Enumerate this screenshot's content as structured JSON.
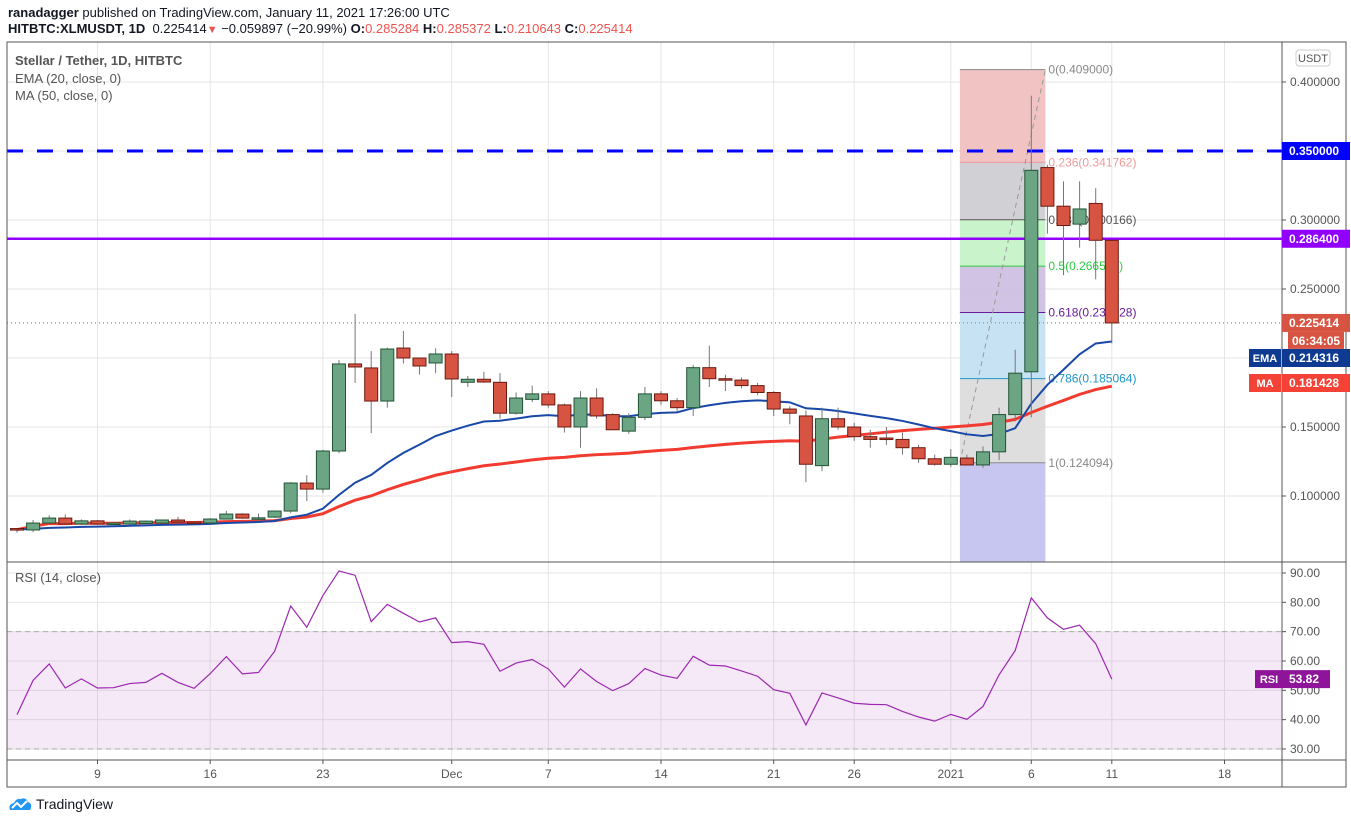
{
  "header": {
    "publisher_line": "ranadagger published on TradingView.com, January 11, 2021 17:26:00 UTC",
    "publisher_name": "ranadagger",
    "publisher_rest": " published on TradingView.com, January 11, 2021 17:26:00 UTC",
    "symbol": "HITBTC:XLMUSDT, 1D",
    "last": "0.225414",
    "change": "−0.059897 (−20.99%)",
    "o_label": "O:",
    "o": "0.285284",
    "h_label": "H:",
    "h": "0.285372",
    "l_label": "L:",
    "l": "0.210643",
    "c_label": "C:",
    "c": "0.225414"
  },
  "legend": {
    "title": "Stellar / Tether, 1D, HITBTC",
    "ema": "EMA (20, close, 0)",
    "ma": "MA (50, close, 0)",
    "rsi": "RSI (14, close)"
  },
  "price_axis": {
    "currency": "USDT",
    "ticks": [
      "0.400000",
      "0.300000",
      "0.250000",
      "0.150000",
      "0.100000"
    ],
    "tick_values": [
      0.4,
      0.3,
      0.25,
      0.15,
      0.1
    ],
    "grid_values": [
      0.4,
      0.35,
      0.3,
      0.25,
      0.2,
      0.15,
      0.1
    ],
    "last_price_label": "0.225414",
    "countdown": "06:34:05",
    "ema_tag": "EMA",
    "ema_value": "0.214316",
    "ma_tag": "MA",
    "ma_value": "0.181428",
    "resistance_1": "0.350000",
    "resistance_2": "0.286400"
  },
  "rsi_axis": {
    "ticks": [
      "90.00",
      "80.00",
      "70.00",
      "60.00",
      "50.00",
      "40.00",
      "30.00"
    ],
    "tick_values": [
      90,
      80,
      70,
      60,
      50,
      40,
      30
    ],
    "tag": "RSI",
    "value": "53.82"
  },
  "time_axis": {
    "labels": [
      "9",
      "16",
      "23",
      "Dec",
      "7",
      "14",
      "21",
      "26",
      "2021",
      "6",
      "11",
      "18"
    ],
    "label_dates": [
      "2020-11-09",
      "2020-11-16",
      "2020-11-23",
      "2020-12-01",
      "2020-12-07",
      "2020-12-14",
      "2020-12-21",
      "2020-12-26",
      "2021-01-01",
      "2021-01-06",
      "2021-01-11",
      "2021-01-18"
    ]
  },
  "colors": {
    "up": "#6ba583",
    "up_border": "#225437",
    "down": "#d75442",
    "down_border": "#6b1a10",
    "ema": "#1848a8",
    "ma": "#f23b30",
    "rsi": "#9c27b0",
    "resistance_1": "#0000ff",
    "resistance_2": "#9100ff"
  },
  "chart_data": [
    {
      "type": "candlestick",
      "title": "Stellar / Tether, 1D, HITBTC",
      "start_date": "2020-11-04",
      "ylim": [
        0.05,
        0.42
      ],
      "grid": true,
      "ohlc": [
        [
          0.0764,
          0.0768,
          0.0735,
          0.0757
        ],
        [
          0.0754,
          0.0826,
          0.0738,
          0.0804
        ],
        [
          0.0804,
          0.086,
          0.08,
          0.084
        ],
        [
          0.084,
          0.0866,
          0.0795,
          0.0797
        ],
        [
          0.0797,
          0.083,
          0.079,
          0.082
        ],
        [
          0.082,
          0.0826,
          0.079,
          0.0797
        ],
        [
          0.0797,
          0.0815,
          0.079,
          0.0804
        ],
        [
          0.0797,
          0.083,
          0.0792,
          0.0818
        ],
        [
          0.0801,
          0.0822,
          0.0795,
          0.0818
        ],
        [
          0.0804,
          0.083,
          0.08,
          0.0826
        ],
        [
          0.0826,
          0.085,
          0.0805,
          0.0811
        ],
        [
          0.0811,
          0.0815,
          0.0795,
          0.0804
        ],
        [
          0.0804,
          0.084,
          0.08,
          0.0833
        ],
        [
          0.0833,
          0.0893,
          0.083,
          0.0869
        ],
        [
          0.0869,
          0.0875,
          0.0835,
          0.084
        ],
        [
          0.084,
          0.0872,
          0.0818,
          0.0842
        ],
        [
          0.0847,
          0.0895,
          0.084,
          0.0891
        ],
        [
          0.0891,
          0.1101,
          0.0875,
          0.1094
        ],
        [
          0.1094,
          0.115,
          0.0964,
          0.105
        ],
        [
          0.105,
          0.1335,
          0.1025,
          0.1326
        ],
        [
          0.1326,
          0.1985,
          0.131,
          0.1957
        ],
        [
          0.1957,
          0.2319,
          0.1819,
          0.1935
        ],
        [
          0.1928,
          0.205,
          0.1456,
          0.1688
        ],
        [
          0.1688,
          0.2075,
          0.164,
          0.2065
        ],
        [
          0.2072,
          0.2196,
          0.196,
          0.2
        ],
        [
          0.2,
          0.2,
          0.188,
          0.1942
        ],
        [
          0.1964,
          0.207,
          0.189,
          0.2029
        ],
        [
          0.2029,
          0.205,
          0.1717,
          0.1848
        ],
        [
          0.1824,
          0.187,
          0.179,
          0.1846
        ],
        [
          0.1846,
          0.19,
          0.182,
          0.1826
        ],
        [
          0.1824,
          0.189,
          0.156,
          0.16
        ],
        [
          0.16,
          0.175,
          0.159,
          0.171
        ],
        [
          0.17,
          0.18,
          0.168,
          0.174
        ],
        [
          0.174,
          0.176,
          0.164,
          0.166
        ],
        [
          0.166,
          0.167,
          0.146,
          0.15
        ],
        [
          0.15,
          0.176,
          0.135,
          0.171
        ],
        [
          0.171,
          0.178,
          0.156,
          0.158
        ],
        [
          0.159,
          0.16,
          0.148,
          0.148
        ],
        [
          0.147,
          0.16,
          0.145,
          0.157
        ],
        [
          0.157,
          0.179,
          0.155,
          0.174
        ],
        [
          0.174,
          0.176,
          0.166,
          0.169
        ],
        [
          0.169,
          0.171,
          0.161,
          0.164
        ],
        [
          0.164,
          0.195,
          0.158,
          0.193
        ],
        [
          0.193,
          0.209,
          0.179,
          0.185
        ],
        [
          0.185,
          0.188,
          0.176,
          0.184
        ],
        [
          0.184,
          0.186,
          0.178,
          0.18
        ],
        [
          0.18,
          0.182,
          0.173,
          0.175
        ],
        [
          0.175,
          0.176,
          0.158,
          0.163
        ],
        [
          0.163,
          0.165,
          0.152,
          0.16
        ],
        [
          0.158,
          0.162,
          0.11,
          0.123
        ],
        [
          0.122,
          0.164,
          0.118,
          0.156
        ],
        [
          0.156,
          0.164,
          0.148,
          0.15
        ],
        [
          0.15,
          0.153,
          0.14,
          0.143
        ],
        [
          0.143,
          0.148,
          0.135,
          0.141
        ],
        [
          0.142,
          0.15,
          0.137,
          0.141
        ],
        [
          0.141,
          0.146,
          0.13,
          0.135
        ],
        [
          0.135,
          0.137,
          0.124,
          0.127
        ],
        [
          0.127,
          0.13,
          0.122,
          0.123
        ],
        [
          0.123,
          0.134,
          0.121,
          0.128
        ],
        [
          0.1275,
          0.13,
          0.122,
          0.1225
        ],
        [
          0.1225,
          0.136,
          0.1205,
          0.132
        ],
        [
          0.132,
          0.164,
          0.126,
          0.159
        ],
        [
          0.159,
          0.206,
          0.154,
          0.189
        ],
        [
          0.19,
          0.39,
          0.157,
          0.336
        ],
        [
          0.338,
          0.34,
          0.29,
          0.31
        ],
        [
          0.31,
          0.328,
          0.26,
          0.296
        ],
        [
          0.297,
          0.328,
          0.28,
          0.308
        ],
        [
          0.312,
          0.323,
          0.257,
          0.2853
        ],
        [
          0.285284,
          0.285372,
          0.210643,
          0.225414
        ]
      ],
      "indicators": {
        "ema_period": 20,
        "ma_period": 50
      },
      "horizontal_lines": [
        {
          "value": 0.35,
          "style": "dashed",
          "color": "#0000ff"
        },
        {
          "value": 0.2864,
          "style": "solid",
          "color": "#9100ff"
        }
      ],
      "fibonacci": {
        "from_date": "2021-01-02",
        "to_date": "2021-01-07",
        "levels": [
          {
            "ratio": "0",
            "price": 0.409,
            "label": "0(0.409000)",
            "color": "#888888",
            "fill": "#f0c0c0"
          },
          {
            "ratio": "0.236",
            "price": 0.341762,
            "label": "0.236(0.341762)",
            "color": "#ef9a9a",
            "fill": "#cfcfd3"
          },
          {
            "ratio": "0.382",
            "price": 0.300166,
            "label": "0.382(0.300166)",
            "color": "#555555",
            "fill": "#c6f2c8"
          },
          {
            "ratio": "0.5",
            "price": 0.266547,
            "label": "0.5(0.266547)",
            "color": "#2ecc40",
            "fill": "#cfc0e2"
          },
          {
            "ratio": "0.618",
            "price": 0.232928,
            "label": "0.618(0.232928)",
            "color": "#6a1b9a",
            "fill": "#c4e2f2"
          },
          {
            "ratio": "0.786",
            "price": 0.185064,
            "label": "0.786(0.185064)",
            "color": "#2196c8",
            "fill": "#dcdcdc"
          },
          {
            "ratio": "1",
            "price": 0.124094,
            "label": "1(0.124094)",
            "color": "#888888",
            "fill": "#c3c3f0"
          }
        ]
      }
    },
    {
      "type": "line",
      "title": "RSI (14, close)",
      "start_date": "2020-11-04",
      "ylim": [
        27,
        93
      ],
      "band": [
        30,
        70
      ],
      "values": [
        41.7,
        53.4,
        59,
        50.8,
        53.9,
        50.8,
        50.9,
        52.3,
        52.7,
        55.8,
        52.7,
        50.7,
        55.7,
        61.5,
        55.6,
        56.1,
        63.3,
        78.75,
        71.5,
        82.3,
        90.7,
        89.2,
        73.4,
        79.3,
        76.25,
        73.3,
        74.7,
        66.25,
        66.6,
        65.7,
        56.5,
        59.3,
        60.5,
        57.3,
        51.1,
        57.3,
        53,
        49.9,
        52.3,
        57.4,
        55.2,
        54.1,
        61.6,
        58.6,
        58.3,
        56.6,
        54.8,
        50.2,
        49,
        38.2,
        49.1,
        47.4,
        45.6,
        45.2,
        45.1,
        42.8,
        40.9,
        39.5,
        41.8,
        40.1,
        44.5,
        55.3,
        63.6,
        81.5,
        74.7,
        70.8,
        72.2,
        65.9,
        53.82
      ]
    }
  ],
  "footer": {
    "logo_text": "TradingView"
  }
}
